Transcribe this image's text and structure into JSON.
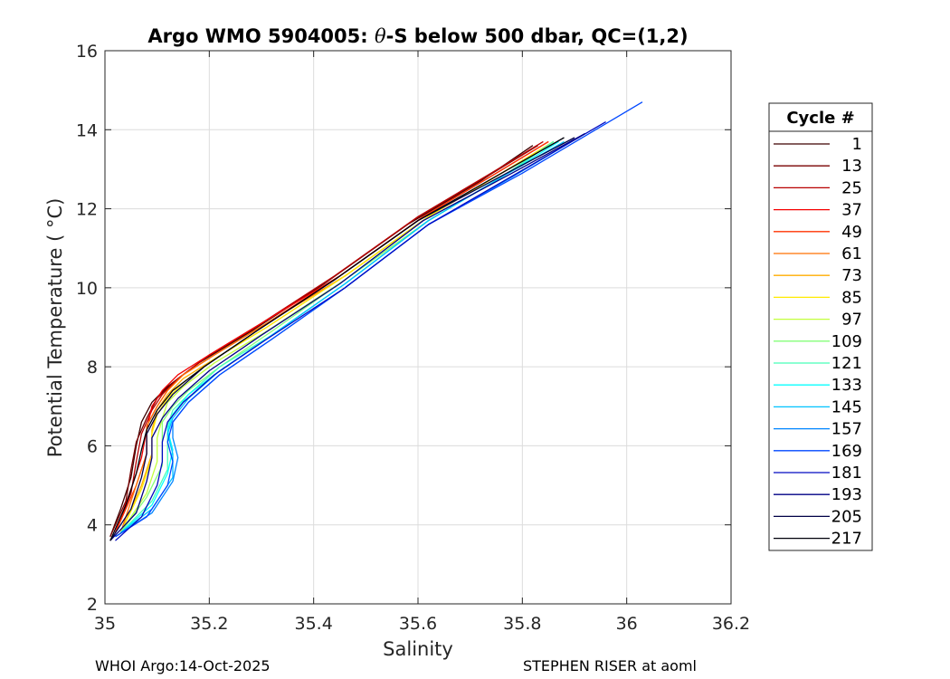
{
  "chart_data": {
    "type": "line",
    "title_prefix": "Argo WMO 5904005: ",
    "title_theta": "θ",
    "title_suffix": "-S below 500 dbar,  QC=(1,2)",
    "xlabel": "Salinity",
    "ylabel": "Potential Temperature ( °C)",
    "xlim": [
      35,
      36.2
    ],
    "ylim": [
      2,
      16
    ],
    "xticks": [
      "35",
      "35.2",
      "35.4",
      "35.6",
      "35.8",
      "36",
      "36.2"
    ],
    "yticks": [
      "2",
      "4",
      "6",
      "8",
      "10",
      "12",
      "14",
      "16"
    ],
    "grid": true,
    "legend_position": "outside-right",
    "legend_title": "Cycle #",
    "series": [
      {
        "name": "1",
        "color": "#3d0000",
        "x": [
          35.01,
          35.03,
          35.05,
          35.06,
          35.07,
          35.09,
          35.12,
          35.18,
          35.28,
          35.42,
          35.58,
          35.72,
          35.82
        ],
        "y": [
          3.7,
          4.4,
          5.2,
          6.0,
          6.6,
          7.1,
          7.5,
          8.1,
          8.9,
          10.1,
          11.6,
          12.7,
          13.6
        ]
      },
      {
        "name": "13",
        "color": "#7a0000",
        "x": [
          35.01,
          35.04,
          35.05,
          35.06,
          35.08,
          35.1,
          35.13,
          35.19,
          35.29,
          35.43,
          35.59,
          35.73,
          35.83
        ],
        "y": [
          3.7,
          4.6,
          5.4,
          6.1,
          6.7,
          7.2,
          7.6,
          8.2,
          9.0,
          10.2,
          11.7,
          12.8,
          13.6
        ]
      },
      {
        "name": "25",
        "color": "#b80000",
        "x": [
          35.02,
          35.05,
          35.06,
          35.07,
          35.09,
          35.11,
          35.14,
          35.2,
          35.3,
          35.44,
          35.6,
          35.74,
          35.84
        ],
        "y": [
          3.8,
          4.8,
          5.6,
          6.3,
          6.9,
          7.3,
          7.7,
          8.3,
          9.1,
          10.3,
          11.8,
          12.9,
          13.7
        ]
      },
      {
        "name": "37",
        "color": "#f50000",
        "x": [
          35.02,
          35.05,
          35.07,
          35.08,
          35.09,
          35.11,
          35.14,
          35.2,
          35.3,
          35.45,
          35.61,
          35.75,
          35.85
        ],
        "y": [
          3.8,
          4.9,
          5.7,
          6.4,
          7.0,
          7.4,
          7.8,
          8.3,
          9.1,
          10.3,
          11.8,
          12.9,
          13.7
        ]
      },
      {
        "name": "49",
        "color": "#ff3300",
        "x": [
          35.02,
          35.06,
          35.08,
          35.08,
          35.1,
          35.12,
          35.15,
          35.21,
          35.31,
          35.45,
          35.61,
          35.75,
          35.85
        ],
        "y": [
          3.8,
          5.0,
          5.8,
          6.5,
          7.0,
          7.4,
          7.8,
          8.3,
          9.1,
          10.3,
          11.8,
          12.9,
          13.7
        ]
      },
      {
        "name": "61",
        "color": "#ff7000",
        "x": [
          35.03,
          35.06,
          35.08,
          35.08,
          35.1,
          35.12,
          35.15,
          35.21,
          35.31,
          35.46,
          35.62,
          35.76,
          35.86
        ],
        "y": [
          3.8,
          5.0,
          5.8,
          6.5,
          7.0,
          7.4,
          7.8,
          8.3,
          9.1,
          10.3,
          11.8,
          12.9,
          13.7
        ]
      },
      {
        "name": "73",
        "color": "#ffad00",
        "x": [
          35.03,
          35.07,
          35.09,
          35.09,
          35.1,
          35.12,
          35.15,
          35.21,
          35.31,
          35.46,
          35.62,
          35.76,
          35.86
        ],
        "y": [
          3.8,
          5.0,
          5.8,
          6.4,
          6.9,
          7.3,
          7.7,
          8.2,
          9.0,
          10.3,
          11.8,
          12.9,
          13.7
        ]
      },
      {
        "name": "85",
        "color": "#ffeb00",
        "x": [
          35.03,
          35.07,
          35.09,
          35.09,
          35.1,
          35.12,
          35.15,
          35.21,
          35.31,
          35.46,
          35.62,
          35.76,
          35.86
        ],
        "y": [
          3.8,
          4.9,
          5.7,
          6.3,
          6.8,
          7.2,
          7.6,
          8.2,
          9.0,
          10.3,
          11.8,
          12.9,
          13.7
        ]
      },
      {
        "name": "97",
        "color": "#c2ff3d",
        "x": [
          35.03,
          35.08,
          35.1,
          35.1,
          35.11,
          35.12,
          35.15,
          35.21,
          35.31,
          35.46,
          35.62,
          35.76,
          35.86
        ],
        "y": [
          3.8,
          4.8,
          5.6,
          6.2,
          6.7,
          7.1,
          7.5,
          8.1,
          8.9,
          10.2,
          11.7,
          12.8,
          13.7
        ]
      },
      {
        "name": "109",
        "color": "#85ff7a",
        "x": [
          35.03,
          35.08,
          35.11,
          35.11,
          35.11,
          35.13,
          35.16,
          35.22,
          35.32,
          35.46,
          35.62,
          35.76,
          35.86
        ],
        "y": [
          3.8,
          4.7,
          5.5,
          6.1,
          6.6,
          7.0,
          7.4,
          8.0,
          8.9,
          10.2,
          11.7,
          12.8,
          13.7
        ]
      },
      {
        "name": "121",
        "color": "#47ffb8",
        "x": [
          35.03,
          35.09,
          35.12,
          35.12,
          35.12,
          35.13,
          35.16,
          35.22,
          35.32,
          35.46,
          35.62,
          35.76,
          35.86
        ],
        "y": [
          3.8,
          4.6,
          5.4,
          6.0,
          6.5,
          6.9,
          7.3,
          8.0,
          8.8,
          10.1,
          11.7,
          12.8,
          13.7
        ]
      },
      {
        "name": "133",
        "color": "#0affff",
        "x": [
          35.03,
          35.09,
          35.12,
          35.13,
          35.12,
          35.13,
          35.16,
          35.22,
          35.32,
          35.46,
          35.62,
          35.76,
          35.87
        ],
        "y": [
          3.8,
          4.5,
          5.3,
          5.9,
          6.4,
          6.8,
          7.3,
          7.9,
          8.8,
          10.1,
          11.7,
          12.8,
          13.7
        ]
      },
      {
        "name": "145",
        "color": "#00c2ff",
        "x": [
          35.03,
          35.09,
          35.13,
          35.13,
          35.12,
          35.13,
          35.16,
          35.22,
          35.32,
          35.46,
          35.62,
          35.76,
          35.88
        ],
        "y": [
          3.8,
          4.4,
          5.2,
          5.8,
          6.3,
          6.7,
          7.2,
          7.9,
          8.8,
          10.1,
          11.7,
          12.8,
          13.7
        ]
      },
      {
        "name": "157",
        "color": "#0085ff",
        "x": [
          35.02,
          35.09,
          35.13,
          35.14,
          35.13,
          35.13,
          35.16,
          35.22,
          35.32,
          35.46,
          35.62,
          35.78,
          35.92
        ],
        "y": [
          3.7,
          4.3,
          5.1,
          5.7,
          6.2,
          6.6,
          7.1,
          7.8,
          8.7,
          10.0,
          11.6,
          12.8,
          13.9
        ]
      },
      {
        "name": "169",
        "color": "#0047ff",
        "x": [
          35.02,
          35.08,
          35.12,
          35.13,
          35.12,
          35.13,
          35.16,
          35.22,
          35.32,
          35.46,
          35.62,
          35.8,
          36.03
        ],
        "y": [
          3.7,
          4.2,
          5.0,
          5.6,
          6.1,
          6.6,
          7.1,
          7.8,
          8.7,
          10.0,
          11.6,
          12.9,
          14.7
        ]
      },
      {
        "name": "181",
        "color": "#000ac2",
        "x": [
          35.02,
          35.07,
          35.1,
          35.11,
          35.11,
          35.12,
          35.15,
          35.21,
          35.31,
          35.46,
          35.62,
          35.79,
          35.96
        ],
        "y": [
          3.6,
          4.2,
          5.0,
          5.6,
          6.1,
          6.6,
          7.1,
          7.8,
          8.7,
          10.0,
          11.6,
          12.9,
          14.2
        ]
      },
      {
        "name": "193",
        "color": "#000085",
        "x": [
          35.01,
          35.06,
          35.08,
          35.09,
          35.09,
          35.11,
          35.14,
          35.2,
          35.3,
          35.45,
          35.61,
          35.78,
          35.92
        ],
        "y": [
          3.6,
          4.3,
          5.1,
          5.7,
          6.2,
          6.7,
          7.2,
          7.9,
          8.8,
          10.1,
          11.7,
          12.9,
          13.9
        ]
      },
      {
        "name": "205",
        "color": "#000047",
        "x": [
          35.01,
          35.05,
          35.07,
          35.08,
          35.08,
          35.1,
          35.13,
          35.19,
          35.29,
          35.44,
          35.6,
          35.77,
          35.9
        ],
        "y": [
          3.6,
          4.4,
          5.2,
          5.8,
          6.3,
          6.8,
          7.3,
          8.0,
          8.9,
          10.2,
          11.7,
          12.9,
          13.8
        ]
      },
      {
        "name": "217",
        "color": "#00000a",
        "x": [
          35.01,
          35.04,
          35.06,
          35.07,
          35.08,
          35.1,
          35.13,
          35.19,
          35.29,
          35.44,
          35.6,
          35.76,
          35.88
        ],
        "y": [
          3.6,
          4.5,
          5.3,
          5.9,
          6.4,
          6.9,
          7.4,
          8.0,
          8.9,
          10.2,
          11.7,
          12.9,
          13.8
        ]
      }
    ]
  },
  "footer": {
    "left": "WHOI Argo:14-Oct-2025",
    "right": "STEPHEN RISER at aoml"
  }
}
